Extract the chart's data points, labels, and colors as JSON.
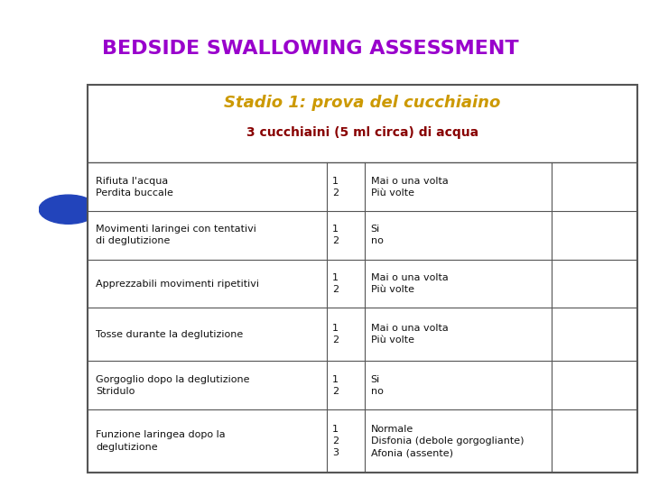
{
  "title": "BEDSIDE SWALLOWING ASSESSMENT",
  "title_color": "#9900cc",
  "subtitle": "Stadio 1: prova del cucchiaino",
  "subtitle_color": "#CC9900",
  "subsubtitle": "3 cucchiaini (5 ml circa) di acqua",
  "subsubtitle_color": "#880000",
  "table_rows": [
    {
      "col1": "Rifiuta l'acqua\nPerdita buccale",
      "col2": "1\n2",
      "col3": "Mai o una volta\nPiù volte",
      "col4": ""
    },
    {
      "col1": "Movimenti laringei con tentativi\ndi deglutizione",
      "col2": "1\n2",
      "col3": "Si\nno",
      "col4": ""
    },
    {
      "col1": "Apprezzabili movimenti ripetitivi",
      "col2": "1\n2",
      "col3": "Mai o una volta\nPiù volte",
      "col4": ""
    },
    {
      "col1": "Tosse durante la deglutizione",
      "col2": "1\n2",
      "col3": "Mai o una volta\nPiù volte",
      "col4": ""
    },
    {
      "col1": "Gorgoglio dopo la deglutizione\nStridulo",
      "col2": "1\n2",
      "col3": "Si\nno",
      "col4": ""
    },
    {
      "col1": "Funzione laringea dopo la\ndeglutizione",
      "col2": "1\n2\n3",
      "col3": "Normale\nDisfonia (debole gorgogliante)\nAfonia (assente)",
      "col4": ""
    }
  ],
  "bg_orange": "#FFB84D",
  "bg_white": "#ffffff",
  "table_border": "#555555",
  "text_color": "#111111",
  "circle_color": "#2244bb"
}
